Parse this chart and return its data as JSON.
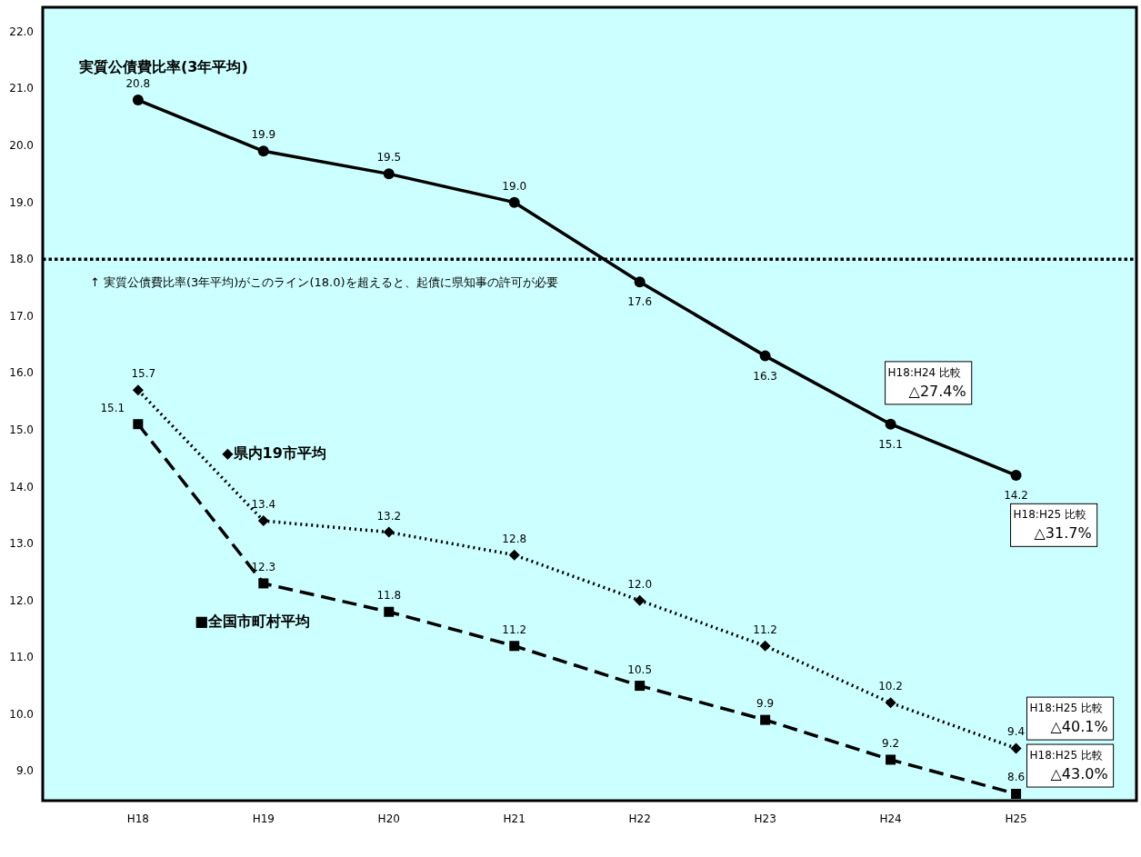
{
  "chart_data": {
    "type": "line",
    "categories": [
      "H18",
      "H19",
      "H20",
      "H21",
      "H22",
      "H23",
      "H24",
      "H25"
    ],
    "series": [
      {
        "name": "実質公債費比率(3年平均)",
        "color": "#000000",
        "values": [
          20.8,
          19.9,
          19.5,
          19.0,
          17.6,
          16.3,
          15.1,
          14.2
        ],
        "value_labels": [
          "20.8",
          "19.9",
          "19.5",
          "19.0",
          "17.6",
          "16.3",
          "15.1",
          "14.2"
        ],
        "marker": "circle",
        "line_style": "solid"
      },
      {
        "name": "◆県内19市平均",
        "color": "#000000",
        "values": [
          15.7,
          13.4,
          13.2,
          12.8,
          12.0,
          11.2,
          10.2,
          9.4
        ],
        "value_labels": [
          "15.7",
          "13.4",
          "13.2",
          "12.8",
          "12.0",
          "11.2",
          "10.2",
          "9.4"
        ],
        "marker": "diamond",
        "line_style": "dotted"
      },
      {
        "name": "■全国市町村平均",
        "color": "#000000",
        "values": [
          15.1,
          12.3,
          11.8,
          11.2,
          10.5,
          9.9,
          9.2,
          8.6
        ],
        "value_labels": [
          "15.1",
          "12.3",
          "11.8",
          "11.2",
          "10.5",
          "9.9",
          "9.2",
          "8.6"
        ],
        "marker": "square",
        "line_style": "dashed"
      }
    ],
    "ylim": [
      8.48,
      22.43
    ],
    "yticks": [
      {
        "value": 9,
        "label": "9.0"
      },
      {
        "value": 10,
        "label": "10.0"
      },
      {
        "value": 11,
        "label": "11.0"
      },
      {
        "value": 12,
        "label": "12.0"
      },
      {
        "value": 13,
        "label": "13.0"
      },
      {
        "value": 14,
        "label": "14.0"
      },
      {
        "value": 15,
        "label": "15.0"
      },
      {
        "value": 16,
        "label": "16.0"
      },
      {
        "value": 17,
        "label": "17.0"
      },
      {
        "value": 18,
        "label": "18.0"
      },
      {
        "value": 19,
        "label": "19.0"
      },
      {
        "value": 20,
        "label": "20.0"
      },
      {
        "value": 21,
        "label": "21.0"
      },
      {
        "value": 22,
        "label": "22.0"
      }
    ],
    "grid": false,
    "legend": false,
    "ref_lines": [
      {
        "axis": "y",
        "value": 18.0,
        "label": "↑ 実質公債費比率(3年平均)がこのライン(18.0)を超えると、起債に県知事の許可が必要",
        "line_style": "dotted",
        "color": "#000000"
      }
    ],
    "annotations": [
      "H18:H24 比較\n△27.4%",
      "H18:H25 比較\n△31.7%",
      "H18:H25 比較\n△40.1%",
      "H18:H25 比較\n△43.0%"
    ]
  }
}
